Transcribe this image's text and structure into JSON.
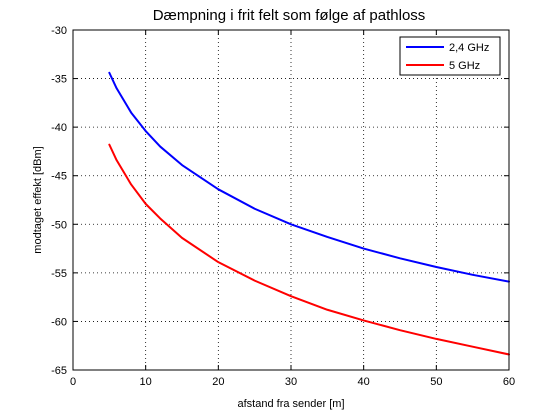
{
  "chart_data": {
    "type": "line",
    "title": "Dæmpning i frit felt som følge af pathloss",
    "xlabel": "afstand fra sender [m]",
    "ylabel": "modtaget effekt [dBm]",
    "xlim": [
      0,
      60
    ],
    "ylim": [
      -65,
      -30
    ],
    "xticks": [
      "0",
      "10",
      "20",
      "30",
      "40",
      "50",
      "60"
    ],
    "yticks": [
      "-30",
      "-35",
      "-40",
      "-45",
      "-50",
      "-55",
      "-60",
      "-65"
    ],
    "grid": true,
    "legend_position": "top-right",
    "series": [
      {
        "name": "2,4 GHz",
        "color": "#0000ff",
        "x": [
          5,
          6,
          8,
          10,
          12,
          15,
          20,
          25,
          30,
          35,
          40,
          45,
          50,
          55,
          60
        ],
        "y": [
          -34.4,
          -36.0,
          -38.5,
          -40.4,
          -42.0,
          -43.9,
          -46.4,
          -48.4,
          -50.0,
          -51.3,
          -52.5,
          -53.5,
          -54.4,
          -55.2,
          -55.9
        ]
      },
      {
        "name": "5 GHz",
        "color": "#ff0000",
        "x": [
          5,
          6,
          8,
          10,
          12,
          15,
          20,
          25,
          30,
          35,
          40,
          45,
          50,
          55,
          60
        ],
        "y": [
          -41.8,
          -43.4,
          -45.9,
          -47.9,
          -49.4,
          -51.4,
          -53.9,
          -55.8,
          -57.4,
          -58.8,
          -59.9,
          -60.9,
          -61.8,
          -62.6,
          -63.4
        ]
      }
    ]
  }
}
